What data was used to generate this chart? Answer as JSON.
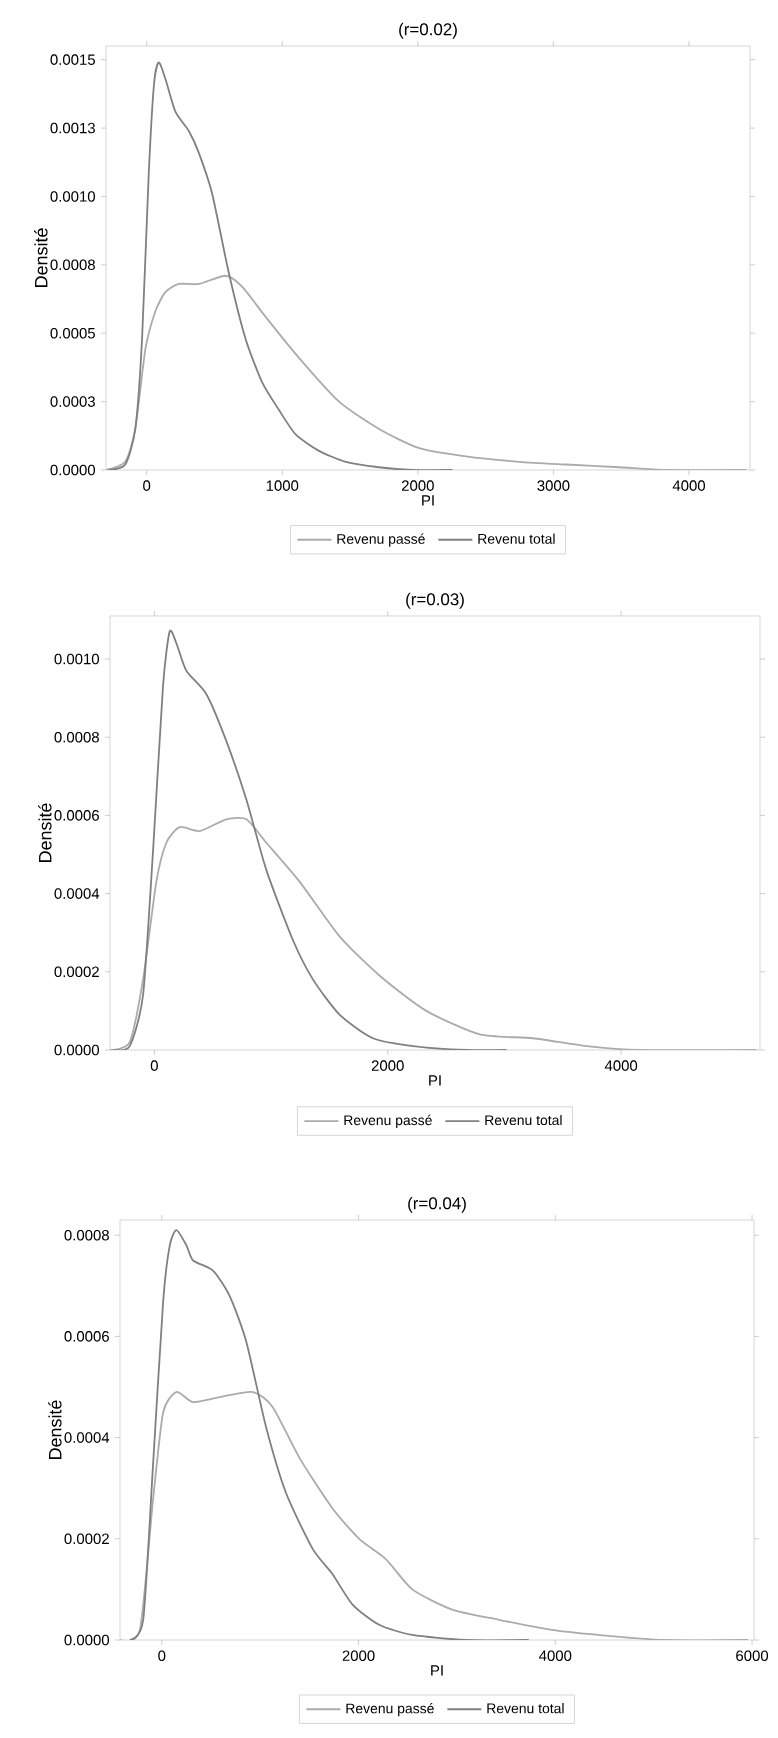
{
  "chart_data": [
    {
      "type": "line",
      "title": "(r=0.02)",
      "xlabel": "PI",
      "ylabel": "Densité",
      "legend": "bottom",
      "grid": false,
      "xlim": [
        -300,
        4450
      ],
      "ylim": [
        0,
        0.00155
      ],
      "xticks": [
        0,
        1000,
        2000,
        3000,
        4000
      ],
      "yticks": [
        {
          "value": 0,
          "label": "0.0000"
        },
        {
          "value": 0.00025,
          "label": "0.0003"
        },
        {
          "value": 0.0005,
          "label": "0.0005"
        },
        {
          "value": 0.00075,
          "label": "0.0008"
        },
        {
          "value": 0.001,
          "label": "0.0010"
        },
        {
          "value": 0.00125,
          "label": "0.0013"
        },
        {
          "value": 0.0015,
          "label": "0.0015"
        }
      ],
      "series": [
        {
          "name": "Revenu passé",
          "color": "#ababab",
          "x": [
            -300,
            -158,
            -84,
            -10,
            64,
            138,
            236,
            384,
            581,
            704,
            877,
            1123,
            1419,
            1714,
            2010,
            2355,
            2749,
            3094,
            3488,
            3833,
            4424
          ],
          "values": [
            0,
            3e-05,
            0.00015,
            0.00044,
            0.00058,
            0.00065,
            0.00068,
            0.00068,
            0.00071,
            0.00067,
            0.00056,
            0.00041,
            0.00025,
            0.00015,
            8e-05,
            5e-05,
            3e-05,
            2e-05,
            1e-05,
            0,
            0
          ]
        },
        {
          "name": "Revenu total",
          "color": "#808080",
          "x": [
            -281,
            -158,
            -84,
            -34,
            15,
            54,
            89,
            138,
            212,
            310,
            384,
            483,
            606,
            729,
            852,
            975,
            1099,
            1271,
            1468,
            1714,
            1961,
            2256
          ],
          "values": [
            0,
            2e-05,
            0.00015,
            0.00048,
            0.00108,
            0.00141,
            0.00149,
            0.00143,
            0.00131,
            0.00124,
            0.00116,
            0.00101,
            0.00072,
            0.00048,
            0.00032,
            0.00022,
            0.00013,
            7e-05,
            3e-05,
            1e-05,
            0,
            0
          ]
        }
      ]
    },
    {
      "type": "line",
      "title": "(r=0.03)",
      "xlabel": "PI",
      "ylabel": "Densité",
      "legend": "bottom",
      "grid": false,
      "xlim": [
        -380,
        5190
      ],
      "ylim": [
        0,
        0.00111
      ],
      "xticks": [
        0,
        2000,
        4000
      ],
      "yticks": [
        {
          "value": 0,
          "label": "0.0000"
        },
        {
          "value": 0.0002,
          "label": "0.0002"
        },
        {
          "value": 0.0004,
          "label": "0.0004"
        },
        {
          "value": 0.0006,
          "label": "0.0006"
        },
        {
          "value": 0.0008,
          "label": "0.0008"
        },
        {
          "value": 0.001,
          "label": "0.0010"
        }
      ],
      "series": [
        {
          "name": "Revenu passé",
          "color": "#ababab",
          "x": [
            -380,
            -211,
            -97,
            17,
            103,
            217,
            389,
            617,
            789,
            960,
            1246,
            1589,
            1931,
            2331,
            2789,
            3246,
            3703,
            4160,
            5160
          ],
          "values": [
            0,
            2e-05,
            0.00018,
            0.00043,
            0.00053,
            0.00057,
            0.00056,
            0.00059,
            0.00059,
            0.00053,
            0.00043,
            0.00029,
            0.00019,
            0.0001,
            4e-05,
            3e-05,
            1e-05,
            0,
            0
          ]
        },
        {
          "name": "Revenu total",
          "color": "#808080",
          "x": [
            -354,
            -211,
            -97,
            -11,
            74,
            131,
            189,
            274,
            446,
            617,
            789,
            960,
            1189,
            1360,
            1589,
            1874,
            2217,
            2674,
            3017
          ],
          "values": [
            0,
            1e-05,
            0.00014,
            0.00051,
            0.00093,
            0.00107,
            0.00104,
            0.00097,
            0.00091,
            0.00079,
            0.00064,
            0.00046,
            0.00028,
            0.00018,
            9e-05,
            3e-05,
            1e-05,
            0,
            0
          ]
        }
      ]
    },
    {
      "type": "line",
      "title": "(r=0.04)",
      "xlabel": "PI",
      "ylabel": "Densité",
      "legend": "bottom",
      "grid": false,
      "xlim": [
        -425,
        6020
      ],
      "ylim": [
        0,
        0.00083
      ],
      "xticks": [
        0,
        2000,
        4000,
        6000
      ],
      "yticks": [
        {
          "value": 0,
          "label": "0.0000"
        },
        {
          "value": 0.0002,
          "label": "0.0002"
        },
        {
          "value": 0.0004,
          "label": "0.0004"
        },
        {
          "value": 0.0006,
          "label": "0.0006"
        },
        {
          "value": 0.0008,
          "label": "0.0008"
        }
      ],
      "series": [
        {
          "name": "Revenu passé",
          "color": "#ababab",
          "x": [
            -425,
            -223,
            -88,
            14,
            149,
            318,
            588,
            926,
            1128,
            1399,
            1736,
            2007,
            2277,
            2547,
            2953,
            3426,
            3966,
            4439,
            5115,
            5959
          ],
          "values": [
            0,
            2e-05,
            0.00028,
            0.00045,
            0.00049,
            0.00047,
            0.00048,
            0.00049,
            0.00046,
            0.00036,
            0.00026,
            0.0002,
            0.00016,
            0.0001,
            6e-05,
            4e-05,
            2e-05,
            1e-05,
            0,
            0
          ]
        },
        {
          "name": "Revenu total",
          "color": "#808080",
          "x": [
            -324,
            -189,
            -88,
            14,
            81,
            149,
            250,
            318,
            520,
            689,
            858,
            1061,
            1264,
            1534,
            1736,
            1939,
            2209,
            2547,
            3088,
            3730
          ],
          "values": [
            0,
            4e-05,
            0.00035,
            0.00067,
            0.00078,
            0.00081,
            0.00078,
            0.00075,
            0.00073,
            0.00068,
            0.00059,
            0.00042,
            0.00029,
            0.00018,
            0.00013,
            7e-05,
            3e-05,
            1e-05,
            0,
            0
          ]
        }
      ]
    }
  ]
}
